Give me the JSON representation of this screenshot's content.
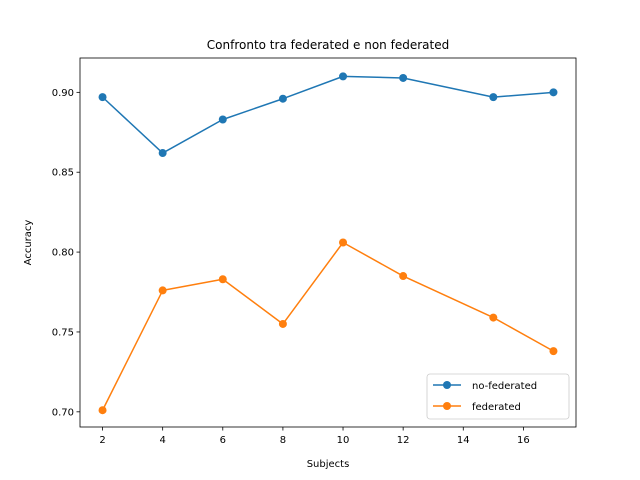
{
  "chart_data": {
    "type": "line",
    "title": "Confronto tra federated e non federated",
    "xlabel": "Subjects",
    "ylabel": "Accuracy",
    "x": [
      2,
      4,
      6,
      8,
      10,
      12,
      15,
      17
    ],
    "xticks": [
      2,
      4,
      6,
      8,
      10,
      12,
      14,
      16
    ],
    "yticks": [
      0.7,
      0.75,
      0.8,
      0.85,
      0.9
    ],
    "ytick_labels": [
      "0.70",
      "0.75",
      "0.80",
      "0.85",
      "0.90"
    ],
    "xlim": [
      1.25,
      17.75
    ],
    "ylim": [
      0.6905,
      0.9215
    ],
    "grid": false,
    "legend_position": "lower right",
    "series": [
      {
        "name": "no-federated",
        "color": "#1f77b4",
        "values": [
          0.897,
          0.862,
          0.883,
          0.896,
          0.91,
          0.909,
          0.897,
          0.9
        ]
      },
      {
        "name": "federated",
        "color": "#ff7f0e",
        "values": [
          0.701,
          0.776,
          0.783,
          0.755,
          0.806,
          0.785,
          0.759,
          0.738
        ]
      }
    ]
  }
}
